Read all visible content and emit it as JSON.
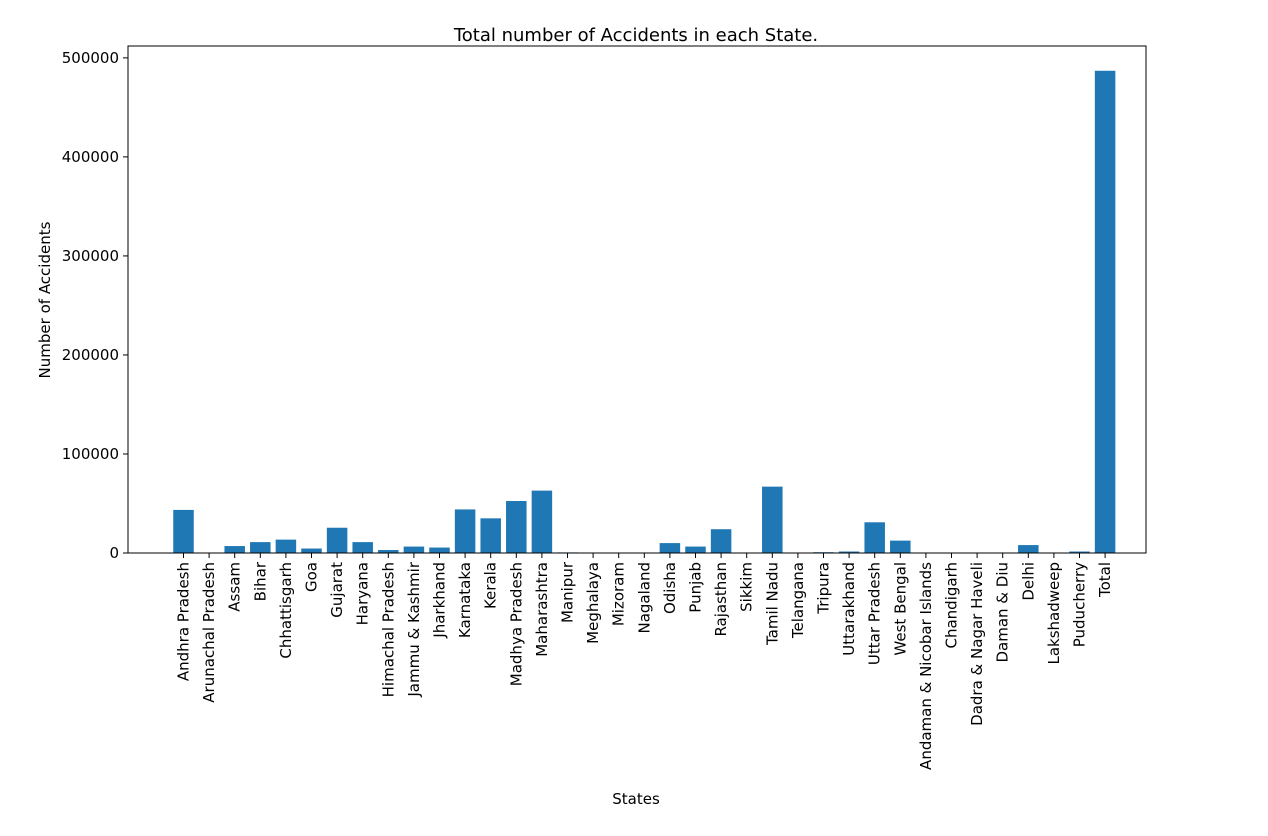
{
  "chart_data": {
    "type": "bar",
    "title": "Total number of Accidents in each State.",
    "xlabel": "States",
    "ylabel": "Number of Accidents",
    "ylim": [
      0,
      512000
    ],
    "yticks": [
      0,
      100000,
      200000,
      300000,
      400000,
      500000
    ],
    "bar_color": "#1f77b4",
    "grid": false,
    "categories": [
      "Andhra Pradesh",
      "Arunachal Pradesh",
      "Assam",
      "Bihar",
      "Chhattisgarh",
      "Goa",
      "Gujarat",
      "Haryana",
      "Himachal Pradesh",
      "Jammu & Kashmir",
      "Jharkhand",
      "Karnataka",
      "Kerala",
      "Madhya Pradesh",
      "Maharashtra",
      "Manipur",
      "Meghalaya",
      "Mizoram",
      "Nagaland",
      "Odisha",
      "Punjab",
      "Rajasthan",
      "Sikkim",
      "Tamil Nadu",
      "Telangana",
      "Tripura",
      "Uttarakhand",
      "Uttar Pradesh",
      "West Bengal",
      "Andaman & Nicobar Islands",
      "Chandigarh",
      "Dadra & Nagar Haveli",
      "Daman & Diu",
      "Delhi",
      "Lakshadweep",
      "Puducherry",
      "Total"
    ],
    "values": [
      43500,
      300,
      7000,
      11000,
      13500,
      4500,
      25500,
      11000,
      3000,
      6500,
      5500,
      44000,
      35000,
      52500,
      63000,
      600,
      500,
      100,
      100,
      10000,
      6500,
      24000,
      200,
      67000,
      100,
      800,
      1500,
      31000,
      12500,
      300,
      400,
      100,
      100,
      8000,
      10,
      1500,
      487000
    ]
  }
}
